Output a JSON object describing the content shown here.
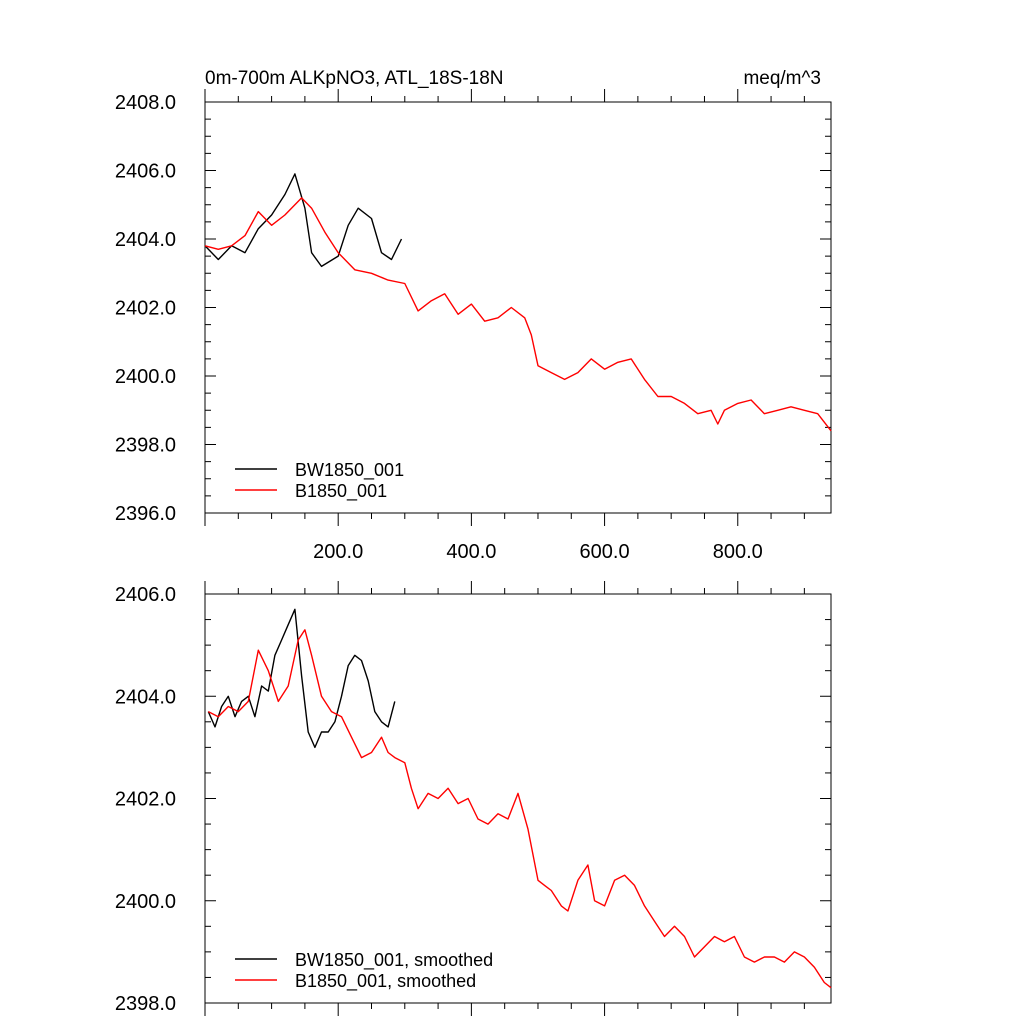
{
  "chart_data": [
    {
      "type": "line",
      "title": "0m-700m ALKpNO3, ATL_18S-18N",
      "units": "meq/m^3",
      "xlim": [
        0,
        940
      ],
      "ylim": [
        2396.0,
        2408.0
      ],
      "yticks": [
        2396.0,
        2398.0,
        2400.0,
        2402.0,
        2404.0,
        2406.0,
        2408.0
      ],
      "yticklabels": [
        "2396.0",
        "2398.0",
        "2400.0",
        "2402.0",
        "2404.0",
        "2406.0",
        "2408.0"
      ],
      "xticks": [
        200,
        400,
        600,
        800
      ],
      "xticklabels": [
        "200.0",
        "400.0",
        "600.0",
        "800.0"
      ],
      "legend_position": "bottom-left",
      "grid": false,
      "series": [
        {
          "name": "BW1850_001",
          "color": "#000000",
          "x": [
            0,
            20,
            40,
            60,
            80,
            100,
            120,
            135,
            150,
            160,
            175,
            200,
            215,
            230,
            250,
            265,
            280,
            295
          ],
          "y": [
            2403.8,
            2403.4,
            2403.8,
            2403.6,
            2404.3,
            2404.7,
            2405.3,
            2405.9,
            2404.9,
            2403.6,
            2403.2,
            2403.5,
            2404.4,
            2404.9,
            2404.6,
            2403.6,
            2403.4,
            2404.0
          ]
        },
        {
          "name": "B1850_001",
          "color": "#ff0000",
          "x": [
            0,
            20,
            40,
            60,
            80,
            100,
            120,
            145,
            160,
            180,
            200,
            225,
            250,
            275,
            300,
            320,
            340,
            360,
            380,
            400,
            420,
            440,
            460,
            480,
            490,
            500,
            520,
            540,
            560,
            580,
            600,
            620,
            640,
            660,
            680,
            700,
            720,
            740,
            760,
            770,
            780,
            800,
            820,
            840,
            860,
            880,
            900,
            920,
            940
          ],
          "y": [
            2403.8,
            2403.7,
            2403.8,
            2404.1,
            2404.8,
            2404.4,
            2404.7,
            2405.2,
            2404.9,
            2404.2,
            2403.6,
            2403.1,
            2403.0,
            2402.8,
            2402.7,
            2401.9,
            2402.2,
            2402.4,
            2401.8,
            2402.1,
            2401.6,
            2401.7,
            2402.0,
            2401.7,
            2401.2,
            2400.3,
            2400.1,
            2399.9,
            2400.1,
            2400.5,
            2400.2,
            2400.4,
            2400.5,
            2399.9,
            2399.4,
            2399.4,
            2399.2,
            2398.9,
            2399.0,
            2398.6,
            2399.0,
            2399.2,
            2399.3,
            2398.9,
            2399.0,
            2399.1,
            2399.0,
            2398.9,
            2398.4
          ]
        }
      ]
    },
    {
      "type": "line",
      "xlim": [
        0,
        940
      ],
      "ylim": [
        2398.0,
        2406.0
      ],
      "yticks": [
        2398.0,
        2400.0,
        2402.0,
        2404.0,
        2406.0
      ],
      "yticklabels": [
        "2398.0",
        "2400.0",
        "2402.0",
        "2404.0",
        "2406.0"
      ],
      "xticks": [
        200,
        400,
        600,
        800
      ],
      "legend_position": "bottom-left",
      "grid": false,
      "series": [
        {
          "name": "BW1850_001, smoothed",
          "color": "#000000",
          "x": [
            5,
            15,
            25,
            35,
            45,
            55,
            65,
            75,
            85,
            95,
            105,
            115,
            125,
            135,
            145,
            155,
            165,
            175,
            185,
            195,
            205,
            215,
            225,
            235,
            245,
            255,
            265,
            275,
            285
          ],
          "y": [
            2403.7,
            2403.4,
            2403.8,
            2404.0,
            2403.6,
            2403.9,
            2404.0,
            2403.6,
            2404.2,
            2404.1,
            2404.8,
            2405.1,
            2405.4,
            2405.7,
            2404.4,
            2403.3,
            2403.0,
            2403.3,
            2403.3,
            2403.5,
            2404.0,
            2404.6,
            2404.8,
            2404.7,
            2404.3,
            2403.7,
            2403.5,
            2403.4,
            2403.9
          ]
        },
        {
          "name": "B1850_001, smoothed",
          "color": "#ff0000",
          "x": [
            5,
            20,
            35,
            50,
            65,
            80,
            95,
            110,
            125,
            140,
            150,
            160,
            175,
            190,
            205,
            220,
            235,
            250,
            265,
            275,
            285,
            300,
            310,
            320,
            335,
            350,
            365,
            380,
            395,
            410,
            425,
            440,
            455,
            470,
            485,
            500,
            510,
            520,
            535,
            545,
            560,
            575,
            585,
            600,
            615,
            630,
            645,
            660,
            675,
            690,
            705,
            720,
            735,
            750,
            765,
            780,
            795,
            810,
            825,
            840,
            855,
            870,
            885,
            900,
            915,
            930,
            940
          ],
          "y": [
            2403.7,
            2403.6,
            2403.8,
            2403.7,
            2403.9,
            2404.9,
            2404.5,
            2403.9,
            2404.2,
            2405.1,
            2405.3,
            2404.8,
            2404.0,
            2403.7,
            2403.6,
            2403.2,
            2402.8,
            2402.9,
            2403.2,
            2402.9,
            2402.8,
            2402.7,
            2402.2,
            2401.8,
            2402.1,
            2402.0,
            2402.2,
            2401.9,
            2402.0,
            2401.6,
            2401.5,
            2401.7,
            2401.6,
            2402.1,
            2401.4,
            2400.4,
            2400.3,
            2400.2,
            2399.9,
            2399.8,
            2400.4,
            2400.7,
            2400.0,
            2399.9,
            2400.4,
            2400.5,
            2400.3,
            2399.9,
            2399.6,
            2399.3,
            2399.5,
            2399.3,
            2398.9,
            2399.1,
            2399.3,
            2399.2,
            2399.3,
            2398.9,
            2398.8,
            2398.9,
            2398.9,
            2398.8,
            2399.0,
            2398.9,
            2398.7,
            2398.4,
            2398.3
          ]
        }
      ]
    }
  ]
}
